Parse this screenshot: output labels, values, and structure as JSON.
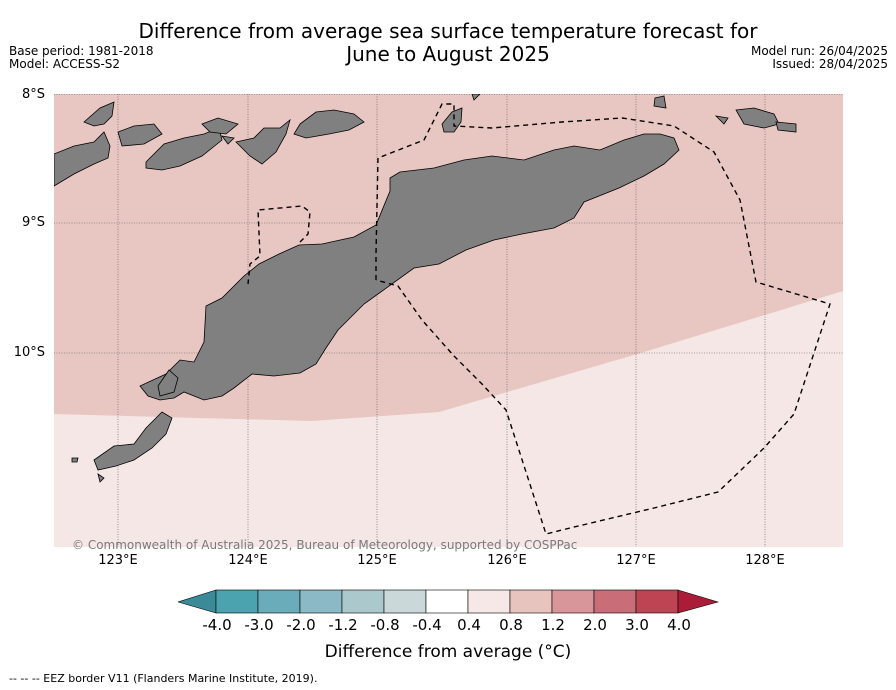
{
  "title_line1": "Difference from average sea surface temperature forecast for",
  "title_line2": "June to August 2025",
  "meta_left": {
    "base_period": "Base period: 1981-2018",
    "model": "Model: ACCESS-S2"
  },
  "meta_right": {
    "model_run": "Model run: 26/04/2025",
    "issued": "Issued: 28/04/2025"
  },
  "axes": {
    "lat_labels": [
      "8°S",
      "9°S",
      "10°S"
    ],
    "lon_labels": [
      "123°E",
      "124°E",
      "125°E",
      "126°E",
      "127°E",
      "128°E"
    ]
  },
  "copyright": "© Commonwealth of Australia 2025, Bureau of Meteorology, supported by COSPPac",
  "colorbar": {
    "ticks": [
      "-4.0",
      "-3.0",
      "-2.0",
      "-1.2",
      "-0.8",
      "-0.4",
      "0.4",
      "0.8",
      "1.2",
      "2.0",
      "3.0",
      "4.0"
    ],
    "colors": [
      "#3b8a97",
      "#4ba3b0",
      "#6aacba",
      "#8bb9c5",
      "#abc9cd",
      "#cbd8da",
      "#ffffff",
      "#f6e8e6",
      "#e8c4bf",
      "#d9969a",
      "#c96d78",
      "#be4454",
      "#aa1c38"
    ],
    "label": "Difference from average (°C)"
  },
  "fill_colors": {
    "band_0_8_to_1_2": "#e8c6c1",
    "band_0_4_to_0_8": "#f5e7e5",
    "land": "#808080"
  },
  "legend_note": "--  --  -- EEZ border V11 (Flanders Marine Institute, 2019)."
}
